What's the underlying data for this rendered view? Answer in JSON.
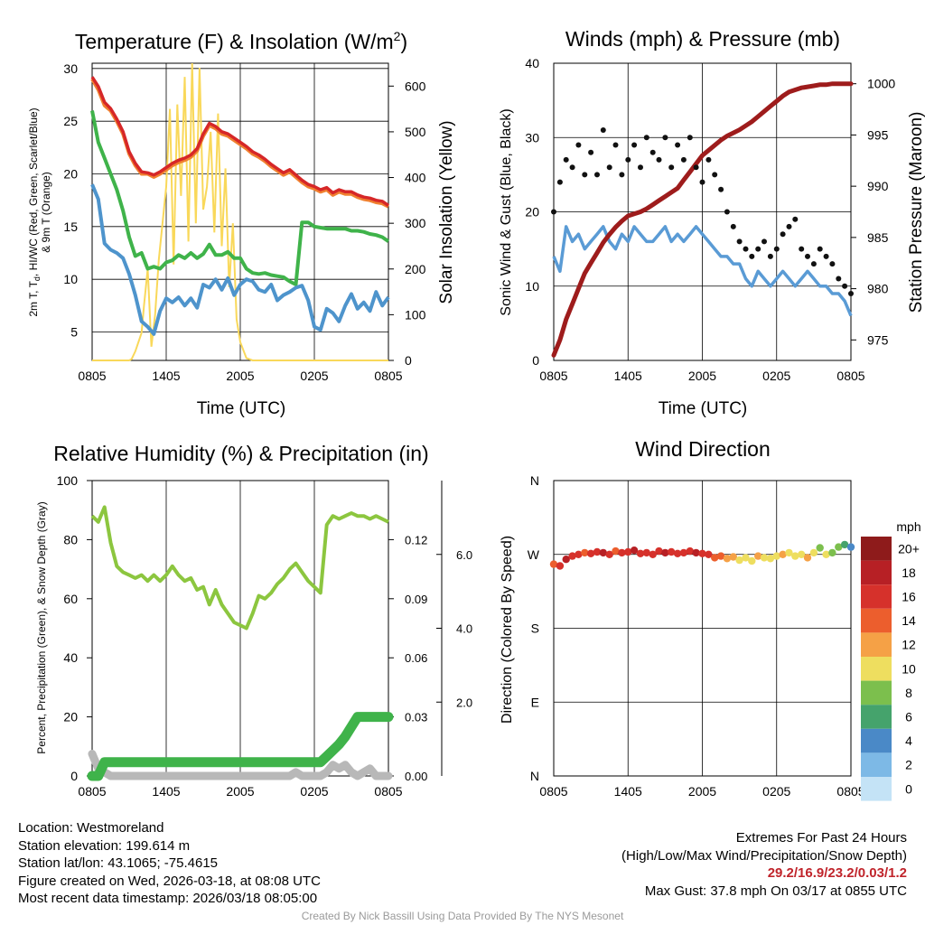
{
  "time_ticks": [
    "0805",
    "1405",
    "2005",
    "0205",
    "0805"
  ],
  "chart_data": [
    {
      "id": "temperature",
      "type": "line",
      "title": "Temperature (F) & Insolation (W/m",
      "title_sup": "2",
      "title_end": ")",
      "xlabel": "Time (UTC)",
      "ylabel_lines": [
        "2m T, T",
        "d",
        ", HI/WC (Red, Green, Scarlet/Blue)",
        "& 9m T (Orange)"
      ],
      "y2label": "Solar Insolation (Yellow)",
      "x_hours_range": [
        0,
        24
      ],
      "ylim": [
        2.3,
        30.5
      ],
      "y_ticks": [
        "5",
        "10",
        "15",
        "20",
        "25",
        "30"
      ],
      "y2lim": [
        0,
        650
      ],
      "y2_ticks": [
        "0",
        "100",
        "200",
        "300",
        "400",
        "500",
        "600"
      ],
      "x": [
        0,
        0.5,
        1,
        1.5,
        2,
        2.5,
        3,
        3.5,
        4,
        4.5,
        5,
        5.5,
        6,
        6.5,
        7,
        7.5,
        8,
        8.5,
        9,
        9.5,
        10,
        10.5,
        11,
        11.5,
        12,
        12.5,
        13,
        13.5,
        14,
        14.5,
        15,
        15.5,
        16,
        16.5,
        17,
        17.5,
        18,
        18.5,
        19,
        19.5,
        20,
        20.5,
        21,
        21.5,
        22,
        22.5,
        23,
        23.5,
        24
      ],
      "series": [
        {
          "name": "2m T",
          "color": "#d62728",
          "values": [
            29.2,
            28.3,
            26.8,
            26.2,
            25.2,
            24.0,
            22.1,
            21.0,
            20.2,
            20.1,
            19.9,
            20.2,
            20.6,
            21.0,
            21.3,
            21.5,
            21.8,
            22.4,
            23.8,
            24.8,
            24.5,
            24.0,
            23.8,
            23.4,
            23.0,
            22.6,
            22.1,
            21.8,
            21.4,
            20.9,
            20.5,
            20.1,
            20.4,
            19.9,
            19.4,
            19.0,
            18.8,
            18.5,
            18.7,
            18.2,
            18.5,
            18.3,
            18.3,
            18.0,
            17.8,
            17.7,
            17.5,
            17.4,
            17.0
          ]
        },
        {
          "name": "Td",
          "color": "#3fb34a",
          "values": [
            26.0,
            23.0,
            21.5,
            20.0,
            18.5,
            16.5,
            14.0,
            12.2,
            12.5,
            11.0,
            11.2,
            11.0,
            11.6,
            11.8,
            12.3,
            12.0,
            12.5,
            12.0,
            12.4,
            13.3,
            12.3,
            12.3,
            12.6,
            12.0,
            12.0,
            11.0,
            10.6,
            10.5,
            10.6,
            10.4,
            10.3,
            10.2,
            9.8,
            9.5,
            15.4,
            15.4,
            15.0,
            14.9,
            14.8,
            14.8,
            14.8,
            14.8,
            14.6,
            14.6,
            14.5,
            14.3,
            14.2,
            14.0,
            13.6
          ]
        },
        {
          "name": "WC",
          "color": "#4e94cc",
          "values": [
            19.0,
            17.6,
            13.4,
            12.8,
            12.5,
            12.0,
            10.5,
            8.5,
            6.0,
            5.5,
            4.8,
            7.0,
            8.2,
            7.8,
            8.3,
            7.5,
            8.2,
            7.3,
            9.5,
            9.2,
            10.0,
            9.0,
            10.1,
            8.5,
            9.5,
            10.0,
            9.8,
            9.0,
            8.8,
            9.5,
            8.0,
            8.5,
            8.8,
            9.2,
            9.4,
            8.0,
            5.5,
            5.2,
            7.2,
            6.8,
            6.0,
            7.5,
            8.6,
            7.2,
            7.8,
            7.0,
            8.8,
            7.5,
            8.3
          ]
        },
        {
          "name": "9m T",
          "color": "#f08030",
          "values": [
            29.0,
            28.0,
            26.5,
            26.0,
            25.0,
            23.8,
            21.9,
            20.8,
            20.0,
            20.0,
            19.7,
            20.0,
            20.4,
            20.8,
            21.1,
            21.3,
            21.6,
            22.2,
            23.6,
            24.6,
            24.3,
            23.8,
            23.6,
            23.2,
            22.8,
            22.4,
            21.9,
            21.6,
            21.2,
            20.7,
            20.3,
            19.9,
            20.2,
            19.7,
            19.2,
            18.8,
            18.6,
            18.3,
            18.5,
            18.0,
            18.3,
            18.1,
            18.1,
            17.8,
            17.6,
            17.5,
            17.3,
            17.2,
            16.9
          ]
        }
      ],
      "y2_series": {
        "name": "Solar Insolation",
        "color": "#f9d85a",
        "x": [
          0,
          3,
          3.2,
          3.5,
          4,
          4.2,
          4.5,
          4.8,
          5.1,
          5.4,
          5.7,
          6,
          6.3,
          6.6,
          6.9,
          7.2,
          7.5,
          7.8,
          8.1,
          8.4,
          8.7,
          9,
          9.3,
          9.6,
          9.9,
          10.2,
          10.5,
          10.8,
          11.1,
          11.4,
          11.7,
          12,
          12.5,
          13,
          24
        ],
        "values": [
          0,
          0,
          3,
          20,
          60,
          120,
          200,
          30,
          100,
          220,
          300,
          380,
          550,
          210,
          560,
          360,
          620,
          260,
          650,
          300,
          640,
          330,
          380,
          500,
          280,
          540,
          250,
          420,
          160,
          300,
          90,
          40,
          5,
          0,
          0
        ]
      }
    },
    {
      "id": "winds",
      "type": "scatter",
      "title": "Winds (mph) & Pressure (mb)",
      "xlabel": "Time (UTC)",
      "ylabel": "Sonic Wind & Gust (Blue, Black)",
      "y2label": "Station Pressure (Maroon)",
      "x_hours_range": [
        0,
        24
      ],
      "ylim": [
        0,
        40
      ],
      "y_ticks": [
        "0",
        "10",
        "20",
        "30",
        "40"
      ],
      "y2lim": [
        973,
        1002
      ],
      "y2_ticks": [
        "975",
        "980",
        "985",
        "990",
        "995",
        "1000"
      ],
      "x": [
        0,
        0.5,
        1,
        1.5,
        2,
        2.5,
        3,
        3.5,
        4,
        4.5,
        5,
        5.5,
        6,
        6.5,
        7,
        7.5,
        8,
        8.5,
        9,
        9.5,
        10,
        10.5,
        11,
        11.5,
        12,
        12.5,
        13,
        13.5,
        14,
        14.5,
        15,
        15.5,
        16,
        16.5,
        17,
        17.5,
        18,
        18.5,
        19,
        19.5,
        20,
        20.5,
        21,
        21.5,
        22,
        22.5,
        23,
        23.5,
        24
      ],
      "series": [
        {
          "name": "Sonic Wind",
          "color": "#5a9bd5",
          "values": [
            14,
            12,
            18,
            16,
            17,
            15,
            16,
            17,
            18,
            16,
            15,
            17,
            16,
            18,
            17,
            16,
            16,
            17,
            18,
            16,
            17,
            16,
            17,
            18,
            17,
            16,
            15,
            14,
            14,
            13,
            13,
            11,
            10,
            12,
            11,
            10,
            11,
            12,
            11,
            10,
            11,
            12,
            11,
            10,
            10,
            9,
            9,
            8,
            6
          ]
        },
        {
          "name": "Gust",
          "color": "#111111",
          "values": [
            20,
            24,
            27,
            26,
            29,
            25,
            28,
            25,
            31,
            26,
            29,
            25,
            27,
            29,
            26,
            30,
            28,
            27,
            30,
            26,
            29,
            27,
            30,
            26,
            24,
            27,
            25,
            23,
            20,
            18,
            16,
            15,
            14,
            15,
            16,
            14,
            15,
            17,
            18,
            19,
            15,
            14,
            13,
            15,
            14,
            13,
            11,
            10,
            9
          ]
        },
        {
          "name": "Station Pressure",
          "color": "#9e1c1c",
          "values": [
            973.5,
            975,
            977,
            978.5,
            980,
            981.5,
            982.5,
            983.5,
            984.5,
            985.3,
            986,
            986.6,
            987.1,
            987.3,
            987.5,
            987.8,
            988.2,
            988.6,
            989,
            989.4,
            989.8,
            990.6,
            991.4,
            992.2,
            993,
            993.5,
            994,
            994.5,
            994.9,
            995.2,
            995.5,
            995.9,
            996.3,
            996.8,
            997.3,
            997.8,
            998.3,
            998.8,
            999.2,
            999.4,
            999.6,
            999.7,
            999.8,
            999.9,
            999.9,
            1000.0,
            1000.0,
            1000.0,
            1000.0
          ]
        }
      ]
    },
    {
      "id": "humidity",
      "type": "line",
      "title": "Relative Humidity (%) & Precipitation (in)",
      "ylabel": "Percent, Precipitation (Green), & Snow Depth (Gray)",
      "x_hours_range": [
        0,
        24
      ],
      "ylim": [
        0,
        100
      ],
      "y_ticks": [
        "0",
        "20",
        "40",
        "60",
        "80",
        "100"
      ],
      "precip_lim": [
        0,
        0.15
      ],
      "precip_ticks": [
        "0.00",
        "0.03",
        "0.06",
        "0.09",
        "0.12"
      ],
      "snow_lim": [
        0,
        8
      ],
      "snow_ticks": [
        "2.0",
        "4.0",
        "6.0"
      ],
      "x": [
        0,
        0.5,
        1,
        1.5,
        2,
        2.5,
        3,
        3.5,
        4,
        4.5,
        5,
        5.5,
        6,
        6.5,
        7,
        7.5,
        8,
        8.5,
        9,
        9.5,
        10,
        10.5,
        11,
        11.5,
        12,
        12.5,
        13,
        13.5,
        14,
        14.5,
        15,
        15.5,
        16,
        16.5,
        17,
        17.5,
        18,
        18.5,
        19,
        19.5,
        20,
        20.5,
        21,
        21.5,
        22,
        22.5,
        23,
        23.5,
        24
      ],
      "series": [
        {
          "name": "Relative Humidity",
          "color": "#8cc63f",
          "values": [
            88,
            86,
            91,
            79,
            71,
            69,
            68,
            67,
            68,
            66,
            68,
            66,
            68,
            71,
            68,
            66,
            67,
            63,
            64,
            58,
            63,
            58,
            55,
            52,
            51,
            50,
            55,
            61,
            60,
            62,
            65,
            67,
            70,
            72,
            69,
            66,
            64,
            62,
            85,
            88,
            87,
            88,
            89,
            88,
            88,
            87,
            88,
            87,
            86
          ]
        },
        {
          "name": "Precipitation",
          "color": "#3fb34a",
          "values": [
            0,
            0,
            0.007,
            0.007,
            0.007,
            0.007,
            0.007,
            0.007,
            0.007,
            0.007,
            0.007,
            0.007,
            0.007,
            0.007,
            0.007,
            0.007,
            0.007,
            0.007,
            0.007,
            0.007,
            0.007,
            0.007,
            0.007,
            0.007,
            0.007,
            0.007,
            0.007,
            0.007,
            0.007,
            0.007,
            0.007,
            0.007,
            0.007,
            0.007,
            0.007,
            0.007,
            0.007,
            0.007,
            0.01,
            0.013,
            0.016,
            0.02,
            0.025,
            0.03,
            0.03,
            0.03,
            0.03,
            0.03,
            0.03
          ]
        },
        {
          "name": "Snow Depth",
          "color": "#b8b8b8",
          "values": [
            0.6,
            0.2,
            0.1,
            0,
            0,
            0,
            0,
            0,
            0,
            0,
            0,
            0,
            0,
            0,
            0,
            0,
            0,
            0,
            0,
            0,
            0,
            0,
            0,
            0,
            0,
            0,
            0,
            0,
            0,
            0,
            0,
            0,
            0,
            0.1,
            0,
            0,
            0,
            0,
            0.1,
            0.3,
            0.2,
            0.3,
            0.1,
            0,
            0.1,
            0.2,
            0,
            0,
            0
          ]
        }
      ]
    },
    {
      "id": "winddir",
      "type": "scatter",
      "title": "Wind Direction",
      "ylabel": "Direction (Colored By Speed)",
      "x_hours_range": [
        0,
        24
      ],
      "y_ticks": [
        "N",
        "E",
        "S",
        "W",
        "N"
      ],
      "x": [
        0,
        0.5,
        1,
        1.5,
        2,
        2.5,
        3,
        3.5,
        4,
        4.5,
        5,
        5.5,
        6,
        6.5,
        7,
        7.5,
        8,
        8.5,
        9,
        9.5,
        10,
        10.5,
        11,
        11.5,
        12,
        12.5,
        13,
        13.5,
        14,
        14.5,
        15,
        15.5,
        16,
        16.5,
        17,
        17.5,
        18,
        18.5,
        19,
        19.5,
        20,
        20.5,
        21,
        21.5,
        22,
        22.5,
        23,
        23.5,
        24
      ],
      "direction_deg": [
        258,
        256,
        264,
        268,
        270,
        272,
        271,
        273,
        272,
        270,
        274,
        272,
        273,
        275,
        271,
        272,
        270,
        274,
        272,
        273,
        271,
        272,
        274,
        272,
        271,
        270,
        266,
        268,
        265,
        267,
        263,
        266,
        262,
        268,
        266,
        265,
        268,
        270,
        272,
        268,
        270,
        266,
        272,
        278,
        270,
        272,
        279,
        282,
        279
      ],
      "speed_mph": [
        14,
        17,
        18,
        16,
        17,
        14,
        16,
        17,
        18,
        16,
        15,
        17,
        16,
        18,
        17,
        16,
        16,
        17,
        18,
        16,
        17,
        16,
        17,
        18,
        17,
        16,
        15,
        14,
        13,
        12,
        11,
        10,
        10,
        12,
        11,
        10,
        11,
        12,
        11,
        10,
        11,
        12,
        11,
        8,
        10,
        9,
        8,
        6,
        5
      ],
      "colorbar_unit": "mph",
      "colorbar_labels": [
        "20+",
        "18",
        "16",
        "14",
        "12",
        "10",
        "8",
        "6",
        "4",
        "2",
        "0"
      ],
      "colorbar_colors": [
        "#8e1b1b",
        "#b72025",
        "#d6312b",
        "#ec5e2d",
        "#f5a146",
        "#eede5f",
        "#7cbf4d",
        "#45a36c",
        "#4a89c7",
        "#7db9e6",
        "#c4e3f6"
      ]
    }
  ],
  "info": {
    "location": "Location: Westmoreland",
    "elevation": "Station elevation: 199.614 m",
    "latlon": "Station lat/lon: 43.1065; -75.4615",
    "created": "Figure created on Wed, 2026-03-18, at 08:08 UTC",
    "recent": "Most recent data timestamp: 2026/03/18 08:05:00",
    "extremes_title": "Extremes For Past 24 Hours",
    "extremes_desc": "(High/Low/Max Wind/Precipitation/Snow Depth)",
    "extremes_values": "29.2/16.9/23.2/0.03/1.2",
    "max_gust": "Max Gust: 37.8 mph On 03/17 at 0855 UTC",
    "credit": "Created By Nick Bassill Using Data Provided By The NYS Mesonet"
  }
}
